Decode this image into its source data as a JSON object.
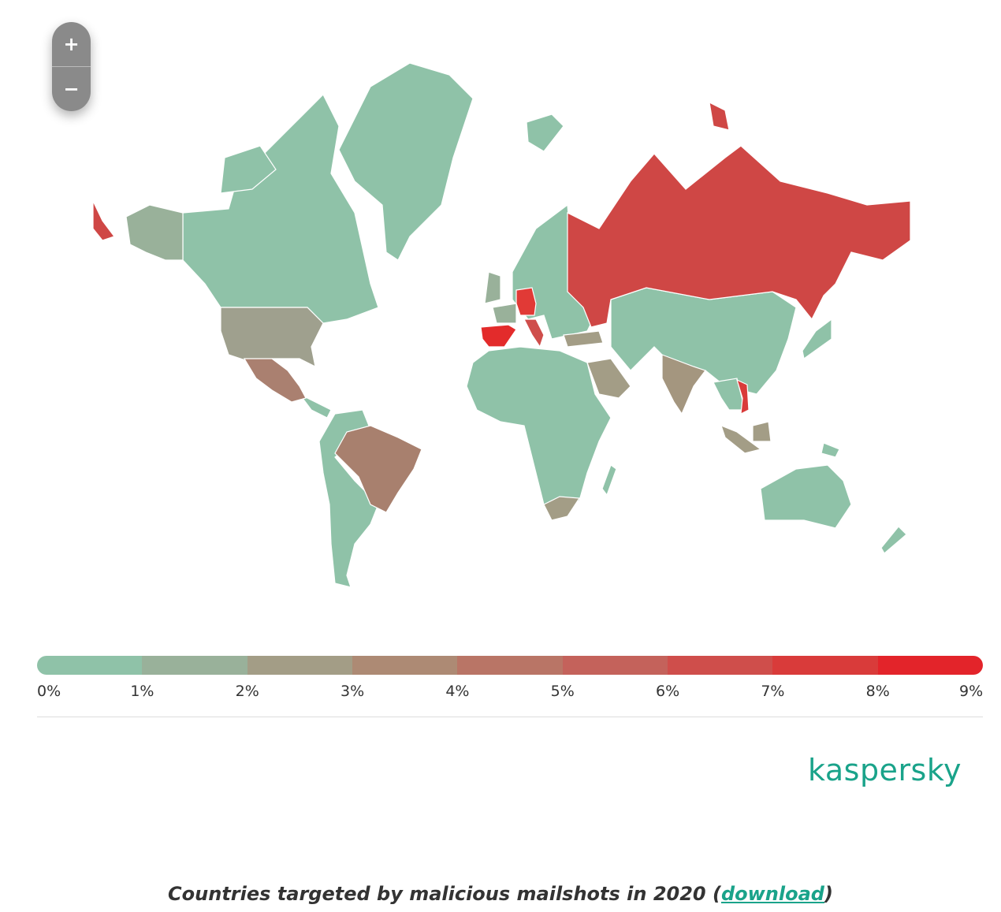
{
  "zoom": {
    "in": "+",
    "out": "−"
  },
  "legend": {
    "labels": [
      "0%",
      "1%",
      "2%",
      "3%",
      "4%",
      "5%",
      "6%",
      "7%",
      "8%",
      "9%"
    ],
    "colors": [
      "#8fc2a8",
      "#99b19a",
      "#a39d86",
      "#ad8a74",
      "#b97566",
      "#c4625b",
      "#cf4e4b",
      "#d93b3a",
      "#e3242a"
    ]
  },
  "logo": "kaspersky",
  "caption": {
    "text": "Countries targeted by malicious mailshots in 2020 (",
    "link": "download",
    "end": ")"
  }
}
